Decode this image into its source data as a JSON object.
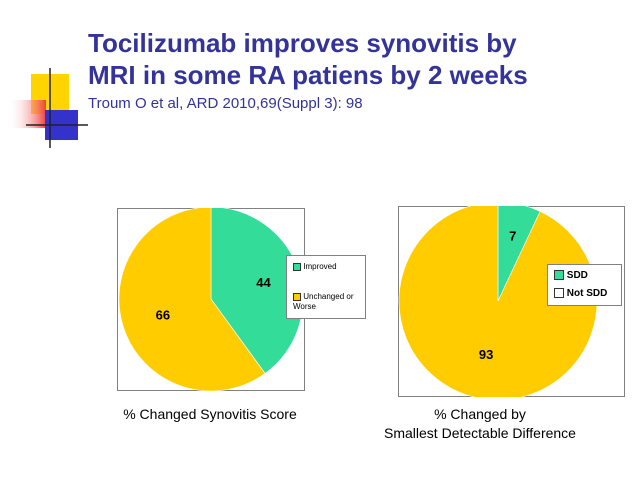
{
  "slide": {
    "title_line1": "Tocilizumab improves synovitis by",
    "title_line2": "MRI in some RA patiens by 2 weeks",
    "citation": "Troum O et al, ARD 2010,69(Suppl 3): 98"
  },
  "colors": {
    "title": "#333399",
    "green": "#33DD99",
    "yellow": "#FFCC00",
    "deco_yellow": "#FFD400",
    "deco_red": "#F04040",
    "deco_blue": "#3333CC"
  },
  "captions": {
    "left": "% Changed Synovitis Score",
    "right_line1": "% Changed by",
    "right_line2": "Smallest Detectable Difference"
  },
  "chart_data": [
    {
      "type": "pie",
      "title": "",
      "slices": [
        {
          "label": "Improved",
          "value": 44,
          "color": "#33DD99"
        },
        {
          "label": "Unchanged or Worse",
          "value": 66,
          "color": "#FFCC00"
        }
      ],
      "data_labels": [
        "44",
        "66"
      ],
      "legend": {
        "placement": "right",
        "entries": [
          "Improved",
          "Unchanged or Worse"
        ]
      },
      "caption": "% Changed Synovitis Score"
    },
    {
      "type": "pie",
      "title": "",
      "slices": [
        {
          "label": "SDD",
          "value": 7,
          "color": "#33DD99"
        },
        {
          "label": "Not SDD",
          "value": 93,
          "color": "#FFCC00"
        }
      ],
      "data_labels": [
        "7",
        "93"
      ],
      "legend": {
        "placement": "right",
        "entries": [
          "SDD",
          "Not SDD"
        ]
      },
      "caption": "% Changed by Smallest Detectable Difference"
    }
  ]
}
